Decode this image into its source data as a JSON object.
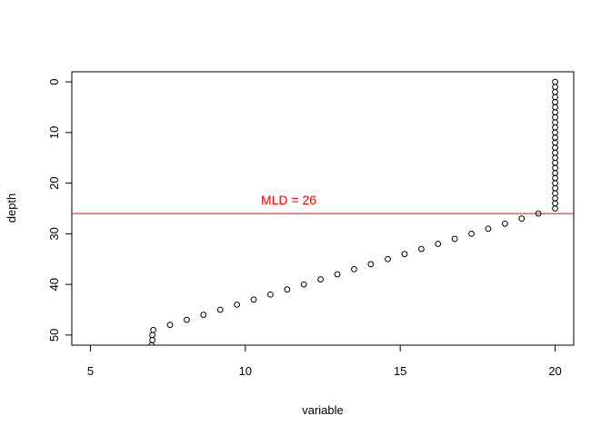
{
  "chart_data": {
    "type": "scatter",
    "xlabel": "variable",
    "ylabel": "depth",
    "xlim": [
      4.4,
      20.6
    ],
    "ylim": [
      52,
      -2
    ],
    "y_reversed": true,
    "x_ticks": [
      5,
      10,
      15,
      20
    ],
    "y_ticks": [
      0,
      10,
      20,
      30,
      40,
      50
    ],
    "x_tick_labels": [
      "5",
      "10",
      "15",
      "20"
    ],
    "y_tick_labels": [
      "0",
      "10",
      "20",
      "30",
      "40",
      "50"
    ],
    "grid": false,
    "point_style": "open-circle",
    "point_color": "#000000",
    "points": [
      {
        "x": 20,
        "y": 0
      },
      {
        "x": 20,
        "y": 1
      },
      {
        "x": 20,
        "y": 2
      },
      {
        "x": 20,
        "y": 3
      },
      {
        "x": 20,
        "y": 4
      },
      {
        "x": 20,
        "y": 5
      },
      {
        "x": 20,
        "y": 6
      },
      {
        "x": 20,
        "y": 7
      },
      {
        "x": 20,
        "y": 8
      },
      {
        "x": 20,
        "y": 9
      },
      {
        "x": 20,
        "y": 10
      },
      {
        "x": 20,
        "y": 11
      },
      {
        "x": 20,
        "y": 12
      },
      {
        "x": 20,
        "y": 13
      },
      {
        "x": 20,
        "y": 14
      },
      {
        "x": 20,
        "y": 15
      },
      {
        "x": 20,
        "y": 16
      },
      {
        "x": 20,
        "y": 17
      },
      {
        "x": 20,
        "y": 18
      },
      {
        "x": 20,
        "y": 19
      },
      {
        "x": 20,
        "y": 20
      },
      {
        "x": 20,
        "y": 21
      },
      {
        "x": 20,
        "y": 22
      },
      {
        "x": 20,
        "y": 23
      },
      {
        "x": 20,
        "y": 24
      },
      {
        "x": 20,
        "y": 25
      },
      {
        "x": 19.46,
        "y": 26
      },
      {
        "x": 18.92,
        "y": 27
      },
      {
        "x": 18.38,
        "y": 28
      },
      {
        "x": 17.84,
        "y": 29
      },
      {
        "x": 17.3,
        "y": 30
      },
      {
        "x": 16.76,
        "y": 31
      },
      {
        "x": 16.22,
        "y": 32
      },
      {
        "x": 15.68,
        "y": 33
      },
      {
        "x": 15.14,
        "y": 34
      },
      {
        "x": 14.6,
        "y": 35
      },
      {
        "x": 14.05,
        "y": 36
      },
      {
        "x": 13.51,
        "y": 37
      },
      {
        "x": 12.97,
        "y": 38
      },
      {
        "x": 12.43,
        "y": 39
      },
      {
        "x": 11.89,
        "y": 40
      },
      {
        "x": 11.35,
        "y": 41
      },
      {
        "x": 10.81,
        "y": 42
      },
      {
        "x": 10.27,
        "y": 43
      },
      {
        "x": 9.73,
        "y": 44
      },
      {
        "x": 9.19,
        "y": 45
      },
      {
        "x": 8.65,
        "y": 46
      },
      {
        "x": 8.11,
        "y": 47
      },
      {
        "x": 7.57,
        "y": 48
      },
      {
        "x": 7.03,
        "y": 49
      },
      {
        "x": 7.0,
        "y": 50
      },
      {
        "x": 7.0,
        "y": 51
      },
      {
        "x": 6.97,
        "y": 52
      }
    ],
    "reference_line": {
      "orientation": "horizontal",
      "y": 26,
      "color": "#ff0000",
      "label": "MLD = 26",
      "label_x": 11.4,
      "label_y": 23.3
    }
  }
}
